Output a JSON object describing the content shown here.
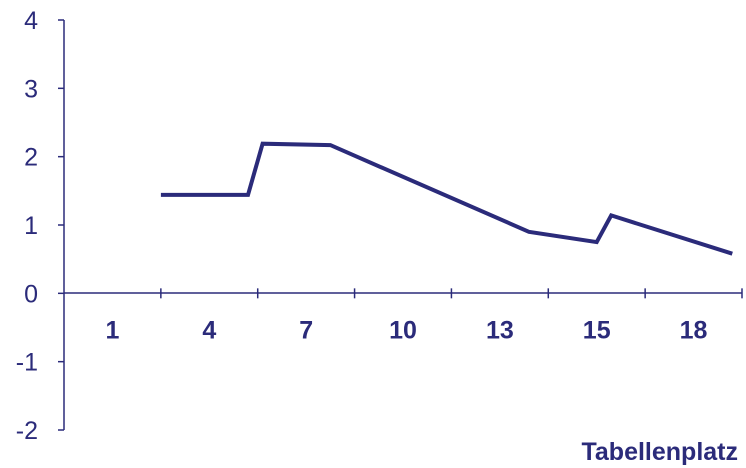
{
  "chart_data": {
    "type": "line",
    "title": "",
    "xlabel": "Tabellenplatz",
    "ylabel": "",
    "ylim": [
      -2,
      4
    ],
    "yticks": [
      4,
      3,
      2,
      1,
      0,
      -1,
      -2
    ],
    "categories": [
      "1",
      "4",
      "7",
      "10",
      "13",
      "15",
      "18"
    ],
    "grid": false,
    "legend": "none",
    "color": "#2b2b7a",
    "series": [
      {
        "points": [
          [
            1.0,
            1.44
          ],
          [
            1.9,
            1.44
          ],
          [
            2.05,
            2.19
          ],
          [
            2.75,
            2.17
          ],
          [
            4.8,
            0.9
          ],
          [
            5.5,
            0.75
          ],
          [
            5.65,
            1.14
          ],
          [
            6.9,
            0.58
          ]
        ]
      }
    ]
  }
}
